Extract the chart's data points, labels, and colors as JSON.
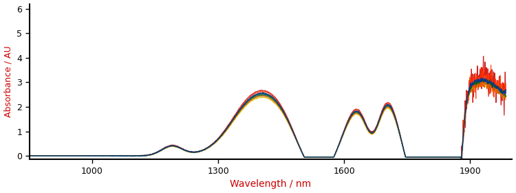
{
  "xlabel": "Wavelength / nm",
  "ylabel": "Absorbance / AU",
  "xlabel_color": "#cc0000",
  "ylabel_color": "#cc0000",
  "xlim": [
    850,
    2000
  ],
  "ylim": [
    -0.15,
    6.2
  ],
  "yticks": [
    0,
    1,
    2,
    3,
    4,
    5,
    6
  ],
  "xticks": [
    1000,
    1300,
    1600,
    1900
  ],
  "background_color": "#ffffff",
  "figsize": [
    7.5,
    2.8
  ],
  "dpi": 100,
  "sample_params": [
    {
      "scale": 1.05,
      "color": "#cc0000",
      "lw": 0.9,
      "noise_hi": 0.35
    },
    {
      "scale": 0.98,
      "color": "#e87722",
      "lw": 0.9,
      "noise_hi": 0.08
    },
    {
      "scale": 0.94,
      "color": "#ddbb00",
      "lw": 0.9,
      "noise_hi": 0.04
    },
    {
      "scale": 0.97,
      "color": "#228800",
      "lw": 0.9,
      "noise_hi": 0.04
    },
    {
      "scale": 0.99,
      "color": "#0044cc",
      "lw": 0.9,
      "noise_hi": 0.06
    },
    {
      "scale": 1.03,
      "color": "#ff3300",
      "lw": 0.8,
      "noise_hi": 0.28
    },
    {
      "scale": 0.96,
      "color": "#dd6600",
      "lw": 0.8,
      "noise_hi": 0.07
    },
    {
      "scale": 1.0,
      "color": "#006600",
      "lw": 0.9,
      "noise_hi": 0.05
    },
    {
      "scale": 1.01,
      "color": "#003399",
      "lw": 0.9,
      "noise_hi": 0.06
    }
  ]
}
